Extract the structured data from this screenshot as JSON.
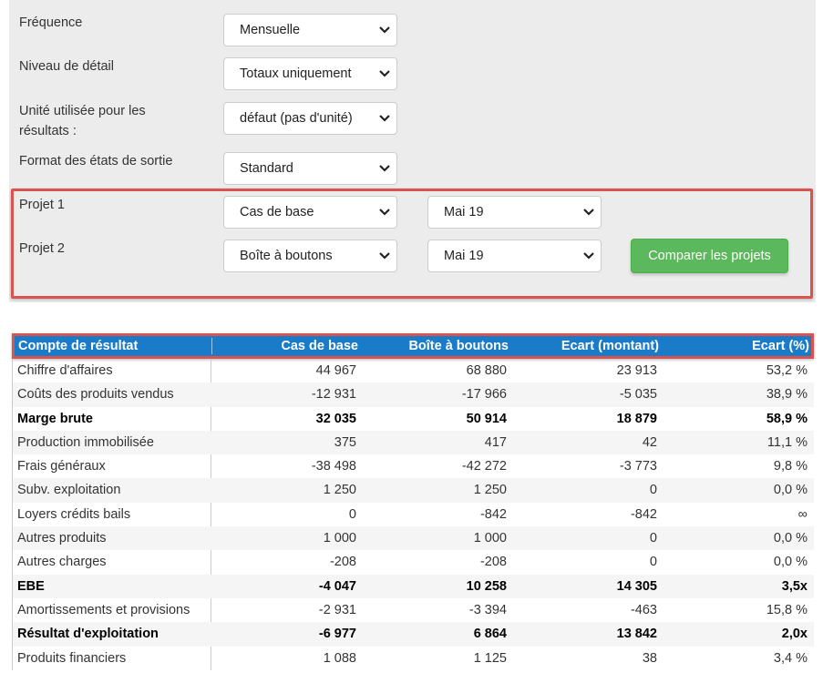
{
  "settings": {
    "frequency_label": "Fréquence",
    "frequency_value": "Mensuelle",
    "detail_label": "Niveau de détail",
    "detail_value": "Totaux uniquement",
    "unit_label_line1": "Unité utilisée pour les",
    "unit_label_line2": "résultats :",
    "unit_value": "défaut (pas d'unité)",
    "format_label": "Format des états de sortie",
    "format_value": "Standard",
    "project1_label": "Projet 1",
    "project1_value": "Cas de base",
    "project1_period": "Mai 19",
    "project2_label": "Projet 2",
    "project2_value": "Boîte à boutons",
    "project2_period": "Mai 19",
    "compare_button": "Comparer les projets"
  },
  "colors": {
    "header_bg": "#1a7bc8",
    "highlight_border": "#d9534f",
    "button_green": "#5cb85c"
  },
  "table": {
    "headers": [
      "Compte de résultat",
      "Cas de base",
      "Boîte à boutons",
      "Ecart (montant)",
      "Ecart (%)"
    ],
    "rows": [
      {
        "label": "Chiffre d'affaires",
        "v1": "44 967",
        "v2": "68 880",
        "v3": "23 913",
        "v4": "53,2 %",
        "bold": false
      },
      {
        "label": "Coûts des produits vendus",
        "v1": "-12 931",
        "v2": "-17 966",
        "v3": "-5 035",
        "v4": "38,9 %",
        "bold": false
      },
      {
        "label": "Marge brute",
        "v1": "32 035",
        "v2": "50 914",
        "v3": "18 879",
        "v4": "58,9 %",
        "bold": true
      },
      {
        "label": "Production immobilisée",
        "v1": "375",
        "v2": "417",
        "v3": "42",
        "v4": "11,1 %",
        "bold": false
      },
      {
        "label": "Frais généraux",
        "v1": "-38 498",
        "v2": "-42 272",
        "v3": "-3 773",
        "v4": "9,8 %",
        "bold": false
      },
      {
        "label": "Subv. exploitation",
        "v1": "1 250",
        "v2": "1 250",
        "v3": "0",
        "v4": "0,0 %",
        "bold": false
      },
      {
        "label": "Loyers crédits bails",
        "v1": "0",
        "v2": "-842",
        "v3": "-842",
        "v4": "∞",
        "bold": false
      },
      {
        "label": "Autres produits",
        "v1": "1 000",
        "v2": "1 000",
        "v3": "0",
        "v4": "0,0 %",
        "bold": false
      },
      {
        "label": "Autres charges",
        "v1": "-208",
        "v2": "-208",
        "v3": "0",
        "v4": "0,0 %",
        "bold": false
      },
      {
        "label": "EBE",
        "v1": "-4 047",
        "v2": "10 258",
        "v3": "14 305",
        "v4": "3,5x",
        "bold": true
      },
      {
        "label": "Amortissements et provisions",
        "v1": "-2 931",
        "v2": "-3 394",
        "v3": "-463",
        "v4": "15,8 %",
        "bold": false
      },
      {
        "label": "Résultat d'exploitation",
        "v1": "-6 977",
        "v2": "6 864",
        "v3": "13 842",
        "v4": "2,0x",
        "bold": true
      },
      {
        "label": "Produits financiers",
        "v1": "1 088",
        "v2": "1 125",
        "v3": "38",
        "v4": "3,4 %",
        "bold": false
      }
    ]
  }
}
